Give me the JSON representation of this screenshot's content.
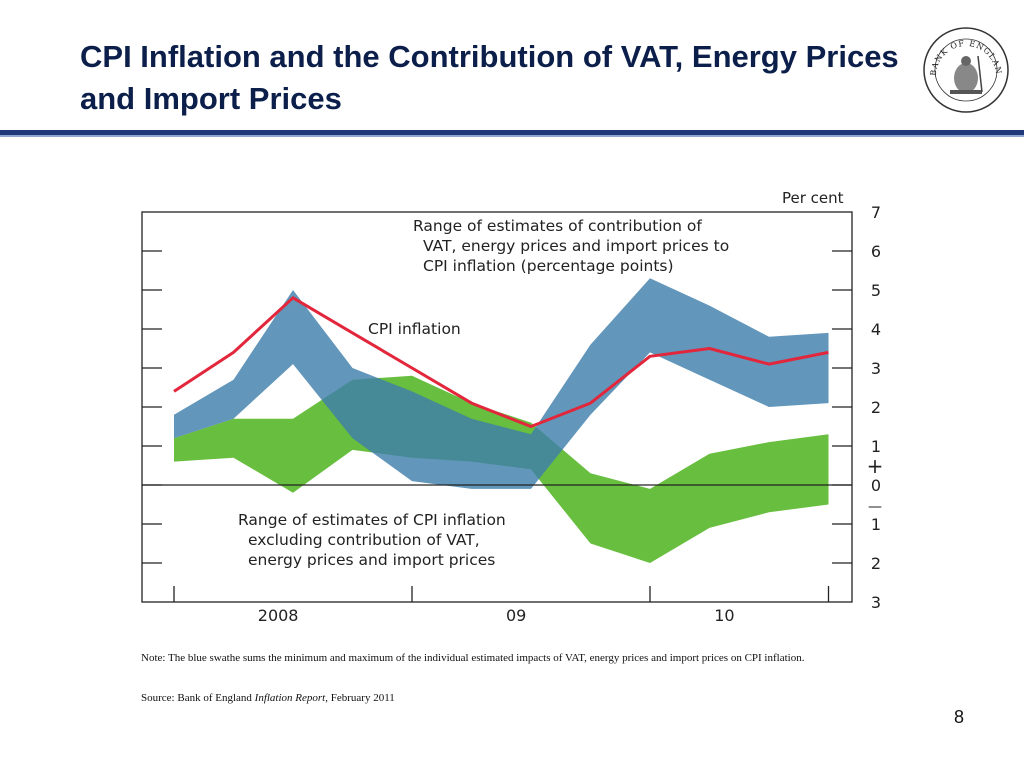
{
  "slide": {
    "title": "CPI Inflation and the Contribution of VAT, Energy Prices and Import Prices",
    "logo_text": "BANK OF ENGLAND",
    "note": "Note: The blue swathe sums the minimum and maximum of the individual estimated impacts of VAT, energy prices and import prices on CPI inflation.",
    "source_prefix": "Source: Bank of England ",
    "source_italic": "Inflation Report",
    "source_suffix": ", February 2011",
    "page_number": "8"
  },
  "colors": {
    "title": "#0b1f4a",
    "rule": "#1f3a7a",
    "cpi_line": "#e2263b",
    "blue_band": "#3f7fab",
    "green_band": "#5bb82e",
    "axis": "#222222"
  },
  "chart_data": {
    "type": "line",
    "unit_label": "Per cent",
    "x_labels": [
      "2008",
      "09",
      "10"
    ],
    "x_label_positions": [
      1.75,
      5.75,
      9.25
    ],
    "x_major_ticks": [
      0,
      4,
      8,
      11
    ],
    "quarters_index": [
      0,
      1,
      2,
      3,
      4,
      5,
      6,
      7,
      8,
      9,
      10,
      11
    ],
    "y_ticks": [
      7,
      6,
      5,
      4,
      3,
      2,
      1,
      0,
      -1,
      -2,
      -3
    ],
    "y_tick_labels": [
      "7",
      "6",
      "5",
      "4",
      "3",
      "2",
      "1",
      "0",
      "1",
      "2",
      "3"
    ],
    "ylim": [
      -3,
      7
    ],
    "series": [
      {
        "name": "CPI inflation",
        "kind": "line",
        "x": [
          0,
          1,
          2,
          3,
          4,
          5,
          6,
          7,
          8,
          9,
          10,
          11
        ],
        "values": [
          2.4,
          3.4,
          4.8,
          3.9,
          3.0,
          2.1,
          1.5,
          2.1,
          3.3,
          3.5,
          3.1,
          3.4
        ]
      },
      {
        "name": "Range of estimates of contribution of VAT, energy prices and import prices to CPI inflation (percentage points)",
        "kind": "band",
        "x": [
          0,
          1,
          2,
          3,
          4,
          5,
          6,
          7,
          8,
          9,
          10,
          11
        ],
        "upper": [
          1.8,
          2.7,
          5.0,
          3.0,
          2.4,
          1.7,
          1.3,
          3.6,
          5.3,
          4.6,
          3.8,
          3.9
        ],
        "lower": [
          1.2,
          1.7,
          3.1,
          1.2,
          0.1,
          -0.1,
          -0.1,
          1.8,
          3.4,
          2.7,
          2.0,
          2.1
        ]
      },
      {
        "name": "Range of estimates of CPI inflation excluding contribution of VAT, energy prices and import prices",
        "kind": "band",
        "x": [
          0,
          1,
          2,
          3,
          4,
          5,
          6,
          7,
          8,
          9,
          10,
          11
        ],
        "upper": [
          1.2,
          1.7,
          1.7,
          2.7,
          2.8,
          2.1,
          1.6,
          0.3,
          -0.1,
          0.8,
          1.1,
          1.3
        ],
        "lower": [
          0.6,
          0.7,
          -0.2,
          0.9,
          0.7,
          0.6,
          0.4,
          -1.5,
          -2.0,
          -1.1,
          -0.7,
          -0.5
        ]
      }
    ],
    "annotations": {
      "blue_band_label": [
        "Range of estimates of contribution of",
        "VAT, energy prices and import prices to",
        "CPI inflation (percentage points)"
      ],
      "cpi_label": "CPI inflation",
      "green_band_label": [
        "Range of estimates of CPI inflation",
        "excluding contribution of VAT,",
        "energy prices and import prices"
      ],
      "plus_sign": "+",
      "minus_sign": "—"
    }
  }
}
